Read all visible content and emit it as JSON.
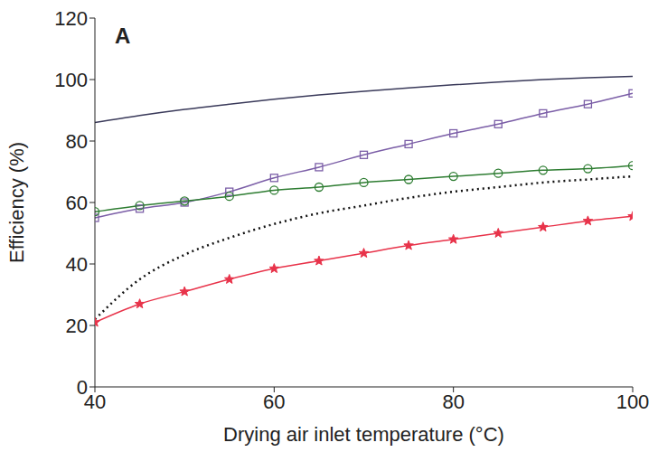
{
  "chart_data": {
    "type": "line",
    "title": "A",
    "x_label": "Drying air inlet temperature (°C)",
    "y_label": "Efficiency (%)",
    "x": [
      40,
      45,
      50,
      55,
      60,
      65,
      70,
      75,
      80,
      85,
      90,
      95,
      100
    ],
    "xlim": [
      40,
      100
    ],
    "xticks": [
      40,
      60,
      80,
      100
    ],
    "ylim": [
      0,
      120
    ],
    "yticks": [
      0,
      20,
      40,
      60,
      80,
      100,
      120
    ],
    "grid": false,
    "series": [
      {
        "color": "#3a3a5a",
        "marker": "none",
        "line_style": "solid",
        "values": [
          86,
          88.3,
          90.3,
          92,
          93.6,
          95,
          96.2,
          97.3,
          98.3,
          99.2,
          100,
          100.6,
          101
        ]
      },
      {
        "color": "#7b5ea7",
        "marker": "square",
        "line_style": "solid",
        "values": [
          55,
          58,
          60,
          63.5,
          68,
          71.5,
          75.5,
          79,
          82.5,
          85.5,
          89,
          92,
          95.5
        ]
      },
      {
        "color": "#2e7d32",
        "marker": "circle",
        "line_style": "solid",
        "values": [
          57,
          59,
          60.5,
          62,
          64,
          65,
          66.5,
          67.5,
          68.5,
          69.5,
          70.5,
          71,
          72
        ]
      },
      {
        "color": "#111111",
        "marker": "none",
        "line_style": "dotted",
        "values": [
          22,
          35,
          43,
          48.5,
          53,
          56.5,
          59,
          61.5,
          63.5,
          65,
          66.5,
          67.5,
          68.5
        ]
      },
      {
        "color": "#e8334a",
        "marker": "star",
        "line_style": "solid",
        "values": [
          21,
          27,
          31,
          35,
          38.5,
          41,
          43.5,
          46,
          48,
          50,
          52,
          54,
          55.5
        ]
      }
    ]
  }
}
